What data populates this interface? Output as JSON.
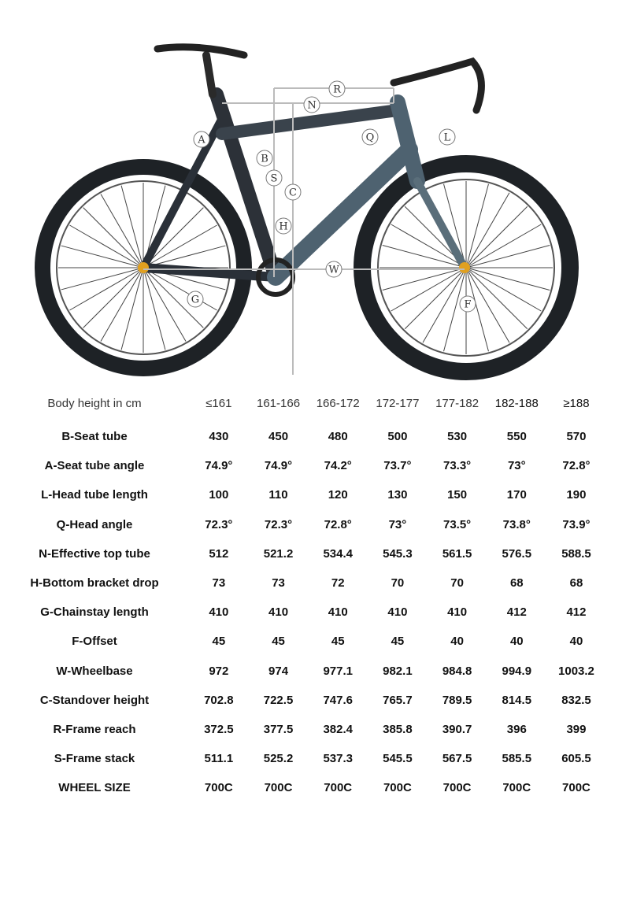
{
  "diagram": {
    "labels": [
      "R",
      "N",
      "A",
      "B",
      "S",
      "C",
      "H",
      "Q",
      "L",
      "W",
      "G",
      "F"
    ]
  },
  "table": {
    "header_label": "Body height in cm",
    "sizes": [
      "≤161",
      "161-166",
      "166-172",
      "172-177",
      "177-182",
      "182-188",
      "≥188"
    ],
    "rows": [
      {
        "label": "B-Seat tube",
        "values": [
          "430",
          "450",
          "480",
          "500",
          "530",
          "550",
          "570"
        ]
      },
      {
        "label": "A-Seat tube angle",
        "values": [
          "74.9°",
          "74.9°",
          "74.2°",
          "73.7°",
          "73.3°",
          "73°",
          "72.8°"
        ]
      },
      {
        "label": "L-Head tube length",
        "values": [
          "100",
          "110",
          "120",
          "130",
          "150",
          "170",
          "190"
        ]
      },
      {
        "label": "Q-Head angle",
        "values": [
          "72.3°",
          "72.3°",
          "72.8°",
          "73°",
          "73.5°",
          "73.8°",
          "73.9°"
        ]
      },
      {
        "label": "N-Effective top tube",
        "values": [
          "512",
          "521.2",
          "534.4",
          "545.3",
          "561.5",
          "576.5",
          "588.5"
        ]
      },
      {
        "label": "H-Bottom bracket drop",
        "values": [
          "73",
          "73",
          "72",
          "70",
          "70",
          "68",
          "68"
        ]
      },
      {
        "label": "G-Chainstay length",
        "values": [
          "410",
          "410",
          "410",
          "410",
          "410",
          "412",
          "412"
        ]
      },
      {
        "label": "F-Offset",
        "values": [
          "45",
          "45",
          "45",
          "45",
          "40",
          "40",
          "40"
        ]
      },
      {
        "label": "W-Wheelbase",
        "values": [
          "972",
          "974",
          "977.1",
          "982.1",
          "984.8",
          "994.9",
          "1003.2"
        ]
      },
      {
        "label": "C-Standover height",
        "values": [
          "702.8",
          "722.5",
          "747.6",
          "765.7",
          "789.5",
          "814.5",
          "832.5"
        ]
      },
      {
        "label": "R-Frame reach",
        "values": [
          "372.5",
          "377.5",
          "382.4",
          "385.8",
          "390.7",
          "396",
          "399"
        ]
      },
      {
        "label": "S-Frame stack",
        "values": [
          "511.1",
          "525.2",
          "537.3",
          "545.5",
          "567.5",
          "585.5",
          "605.5"
        ]
      },
      {
        "label": "WHEEL SIZE",
        "values": [
          "700C",
          "700C",
          "700C",
          "700C",
          "700C",
          "700C",
          "700C"
        ]
      }
    ]
  }
}
